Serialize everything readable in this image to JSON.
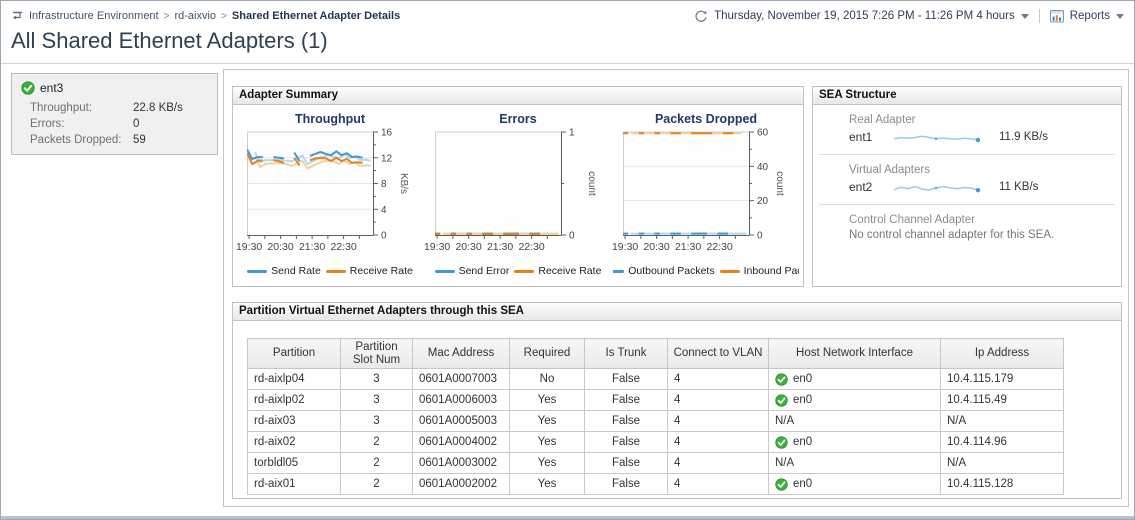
{
  "breadcrumb": {
    "separator": ">",
    "items": [
      "Infrastructure Environment",
      "rd-aixvio",
      "Shared Ethernet Adapter Details"
    ]
  },
  "timebar": {
    "range_label": "Thursday, November 19, 2015 7:26 PM - 11:26 PM 4 hours",
    "reports_label": "Reports"
  },
  "page_title": "All Shared Ethernet Adapters (1)",
  "adapter_tile": {
    "name": "ent3",
    "rows": [
      {
        "label": "Throughput:",
        "value": "22.8 KB/s"
      },
      {
        "label": "Errors:",
        "value": "0"
      },
      {
        "label": "Packets Dropped:",
        "value": "59"
      }
    ]
  },
  "adapter_summary": {
    "title": "Adapter Summary"
  },
  "sea_structure": {
    "title": "SEA Structure",
    "sections": [
      {
        "label": "Real Adapter",
        "name": "ent1",
        "value": "11.9 KB/s",
        "spark": [
          7.2,
          7.8,
          7.4,
          7.9,
          8.6,
          7.9,
          7.2,
          7.6,
          7.1,
          6.9,
          7.4,
          7.2,
          6.4
        ]
      },
      {
        "label": "Virtual Adapters",
        "name": "ent2",
        "value": "11 KB/s",
        "spark": [
          6.6,
          8.0,
          7.2,
          8.4,
          7.0,
          6.4,
          7.6,
          8.5,
          7.8,
          7.2,
          7.9,
          7.6,
          6.3
        ]
      },
      {
        "label": "Control Channel Adapter",
        "note": "No control channel adapter for this SEA."
      }
    ]
  },
  "partition_table": {
    "title": "Partition Virtual Ethernet Adapters through this SEA",
    "columns": [
      "Partition",
      "Partition Slot Num",
      "Mac Address",
      "Required",
      "Is Trunk",
      "Connect to VLAN",
      "Host Network Interface",
      "Ip Address"
    ],
    "rows": [
      {
        "partition": "rd-aixlp04",
        "slot": "3",
        "mac": "0601A0007003",
        "required": "No",
        "trunk": "False",
        "vlan": "4",
        "host": {
          "ok": true,
          "label": "en0"
        },
        "ip": "10.4.115.179"
      },
      {
        "partition": "rd-aixlp02",
        "slot": "3",
        "mac": "0601A0006003",
        "required": "Yes",
        "trunk": "False",
        "vlan": "4",
        "host": {
          "ok": true,
          "label": "en0"
        },
        "ip": "10.4.115.49"
      },
      {
        "partition": "rd-aix03",
        "slot": "3",
        "mac": "0601A0005003",
        "required": "Yes",
        "trunk": "False",
        "vlan": "4",
        "host": {
          "ok": false,
          "label": "N/A"
        },
        "ip": "N/A"
      },
      {
        "partition": "rd-aix02",
        "slot": "2",
        "mac": "0601A0004002",
        "required": "Yes",
        "trunk": "False",
        "vlan": "4",
        "host": {
          "ok": true,
          "label": "en0"
        },
        "ip": "10.4.114.96"
      },
      {
        "partition": "torbldl05",
        "slot": "2",
        "mac": "0601A0003002",
        "required": "Yes",
        "trunk": "False",
        "vlan": "4",
        "host": {
          "ok": false,
          "label": "N/A"
        },
        "ip": "N/A"
      },
      {
        "partition": "rd-aix01",
        "slot": "2",
        "mac": "0601A0002002",
        "required": "Yes",
        "trunk": "False",
        "vlan": "4",
        "host": {
          "ok": true,
          "label": "en0"
        },
        "ip": "10.4.115.128"
      }
    ]
  },
  "colors": {
    "accent_blue": "#3f97d8",
    "accent_orange": "#e5821e",
    "light_blue": "#b3d7f0",
    "light_orange": "#f3d0a0",
    "status_green": "#3cb23c"
  },
  "chart_data": [
    {
      "type": "line",
      "title": "Throughput",
      "ylabel": "KB/s",
      "ylim": [
        0,
        16
      ],
      "grid": true,
      "yticks": [
        {
          "v": 0,
          "label": "0"
        },
        {
          "v": 4,
          "label": "4"
        },
        {
          "v": 8,
          "label": "8"
        },
        {
          "v": 12,
          "label": "12"
        },
        {
          "v": 16,
          "label": "16"
        }
      ],
      "yminor": [
        2,
        6,
        10,
        14
      ],
      "gridlines": [
        4,
        8,
        12
      ],
      "x_domain": [
        0,
        240
      ],
      "xticks": [
        {
          "pos": 4,
          "label": "19:30"
        },
        {
          "pos": 64,
          "label": "20:30"
        },
        {
          "pos": 124,
          "label": "21:30"
        },
        {
          "pos": 184,
          "label": "22:30"
        }
      ],
      "xminor": [
        34,
        94,
        154,
        214
      ],
      "x": [
        0,
        10,
        20,
        30,
        40,
        50,
        60,
        70,
        80,
        90,
        100,
        110,
        120,
        130,
        140,
        150,
        160,
        170,
        180,
        190,
        200,
        210,
        220
      ],
      "shadow_offset": [
        8,
        3
      ],
      "legend_position": "bottom",
      "series": [
        {
          "name": "Send Rate",
          "color": "#3f97d8",
          "light": "#b3d7f0",
          "y": [
            13.3,
            11.8,
            12.1,
            12.1,
            null,
            12.1,
            12.0,
            11.9,
            null,
            12.8,
            11.5,
            null,
            12.3,
            12.6,
            12.9,
            12.6,
            12.4,
            13.0,
            12.4,
            12.7,
            12.1,
            12.2,
            12.0
          ]
        },
        {
          "name": "Receive Rate",
          "color": "#e5821e",
          "light": "#f3d0a0",
          "y": [
            12.7,
            11.0,
            11.5,
            11.6,
            null,
            11.6,
            11.5,
            11.2,
            null,
            12.0,
            10.8,
            null,
            11.6,
            11.9,
            12.0,
            11.9,
            11.5,
            12.0,
            11.5,
            11.8,
            11.2,
            11.3,
            11.2
          ]
        }
      ]
    },
    {
      "type": "line",
      "title": "Errors",
      "ylabel": "count",
      "ylim": [
        0,
        1
      ],
      "grid": false,
      "yticks": [
        {
          "v": 0,
          "label": "0"
        },
        {
          "v": 1,
          "label": "1"
        }
      ],
      "yminor": [
        0.5
      ],
      "gridlines": [],
      "x_domain": [
        0,
        240
      ],
      "xticks": [
        {
          "pos": 4,
          "label": "19:30"
        },
        {
          "pos": 64,
          "label": "20:30"
        },
        {
          "pos": 124,
          "label": "21:30"
        },
        {
          "pos": 184,
          "label": "22:30"
        }
      ],
      "xminor": [
        34,
        94,
        154,
        214
      ],
      "x": [
        0,
        10,
        20,
        30,
        40,
        50,
        60,
        70,
        80,
        90,
        100,
        110,
        120,
        130,
        140,
        150,
        160,
        170,
        180,
        190,
        200,
        210,
        220
      ],
      "shadow_offset": [
        8,
        0
      ],
      "legend_position": "bottom",
      "series": [
        {
          "name": "Send Error",
          "color": "#3f97d8",
          "light": "#b3d7f0",
          "y": [
            0.014,
            0.014,
            null,
            0.014,
            0.014,
            null,
            0.014,
            0.014,
            null,
            0.014,
            0.014,
            0.014,
            null,
            0.014,
            0.014,
            0.014,
            0.014,
            null,
            0.014,
            0.014,
            0.014,
            null,
            0.014
          ]
        },
        {
          "name": "Receive Rate",
          "color": "#e5821e",
          "light": "#f3d0a0",
          "y": [
            0.01,
            0.01,
            null,
            0.01,
            0.01,
            null,
            0.01,
            0.01,
            null,
            0.01,
            0.01,
            0.01,
            null,
            0.01,
            0.01,
            0.01,
            0.01,
            null,
            0.01,
            0.01,
            0.01,
            null,
            0.01
          ]
        }
      ]
    },
    {
      "type": "line",
      "title": "Packets Dropped",
      "ylabel": "count",
      "ylim": [
        0,
        60
      ],
      "grid": true,
      "yticks": [
        {
          "v": 0,
          "label": "0"
        },
        {
          "v": 20,
          "label": "20"
        },
        {
          "v": 40,
          "label": "40"
        },
        {
          "v": 60,
          "label": "60"
        }
      ],
      "yminor": [
        10,
        30,
        50
      ],
      "gridlines": [
        20,
        40
      ],
      "x_domain": [
        0,
        240
      ],
      "xticks": [
        {
          "pos": 4,
          "label": "19:30"
        },
        {
          "pos": 64,
          "label": "20:30"
        },
        {
          "pos": 124,
          "label": "21:30"
        },
        {
          "pos": 184,
          "label": "22:30"
        }
      ],
      "xminor": [
        34,
        94,
        154,
        214
      ],
      "x": [
        0,
        10,
        20,
        30,
        40,
        50,
        60,
        70,
        80,
        90,
        100,
        110,
        120,
        130,
        140,
        150,
        160,
        170,
        180,
        190,
        200,
        210,
        220
      ],
      "shadow_offset": [
        8,
        0
      ],
      "legend_position": "bottom",
      "series": [
        {
          "name": "Outbound Packets",
          "color": "#3f97d8",
          "light": "#b3d7f0",
          "y": [
            0.8,
            0.8,
            null,
            0.8,
            0.8,
            null,
            0.8,
            0.8,
            null,
            0.8,
            0.8,
            0.8,
            null,
            0.8,
            0.8,
            0.8,
            0.8,
            null,
            0.8,
            0.8,
            0.8,
            null,
            0.8
          ]
        },
        {
          "name": "Inbound Pack",
          "color": "#e5821e",
          "light": "#f3d0a0",
          "y": [
            59.3,
            59.3,
            null,
            59.3,
            59.3,
            null,
            59.3,
            59.3,
            null,
            59.3,
            59.3,
            59.3,
            null,
            59.3,
            59.3,
            59.3,
            59.3,
            59.3,
            null,
            59.3,
            59.3,
            59.3,
            null
          ]
        }
      ]
    }
  ]
}
